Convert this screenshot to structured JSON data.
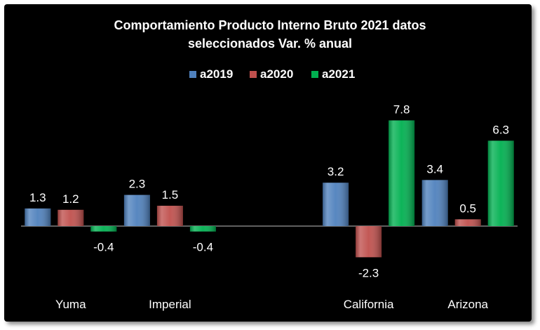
{
  "chart_data": {
    "type": "bar",
    "title": [
      "Comportamiento Producto Interno Bruto 2021 datos",
      "seleccionados Var. % anual"
    ],
    "legend_position": "top",
    "grid": false,
    "categories": [
      "Yuma",
      "Imperial",
      "",
      "California",
      "Arizona"
    ],
    "series": [
      {
        "name": "a2019",
        "color": "#4F81BD",
        "values": [
          1.3,
          2.3,
          null,
          3.2,
          3.4
        ]
      },
      {
        "name": "a2020",
        "color": "#C0504D",
        "values": [
          1.2,
          1.5,
          null,
          -2.3,
          0.5
        ]
      },
      {
        "name": "a2021",
        "color": "#00B050",
        "values": [
          -0.4,
          -0.4,
          null,
          7.8,
          6.3
        ]
      }
    ],
    "ylim": [
      -2.5,
      8.0
    ],
    "xlabel": "",
    "ylabel": ""
  }
}
